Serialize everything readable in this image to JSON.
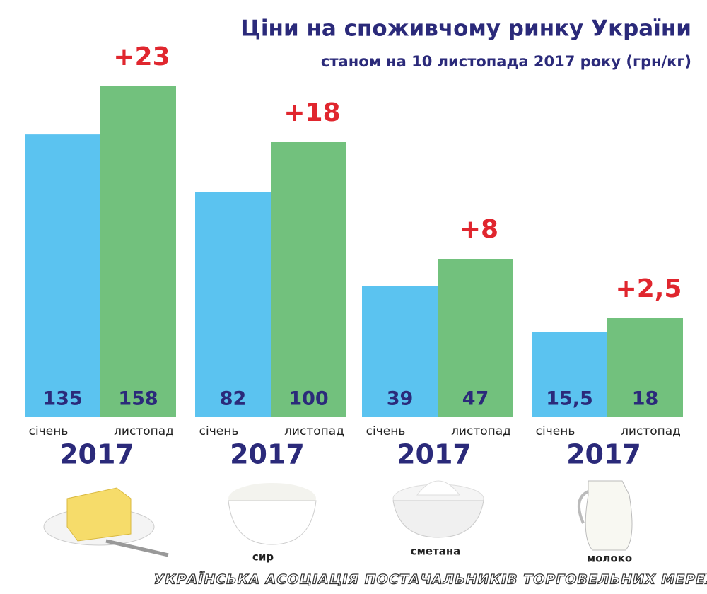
{
  "title": "Ціни на споживчому ринку України",
  "subtitle": "станом на 10 листопада 2017 року (грн/кг)",
  "groups": [
    {
      "change": "+23",
      "year": "2017",
      "bars": [
        {
          "label": "січень",
          "value": 135
        },
        {
          "label": "листопад",
          "value": 158
        }
      ]
    },
    {
      "change": "+18",
      "year": "2017",
      "product": "сир",
      "bars": [
        {
          "label": "січень",
          "value": 82
        },
        {
          "label": "листопад",
          "value": 100
        }
      ]
    },
    {
      "change": "+8",
      "year": "2017",
      "product": "сметана",
      "bars": [
        {
          "label": "січень",
          "value": 39
        },
        {
          "label": "листопад",
          "value": 47
        }
      ]
    },
    {
      "change": "+2,5",
      "year": "2017",
      "product": "молоко",
      "bars": [
        {
          "label": "січень",
          "value": 15.5,
          "value_label": "15,5"
        },
        {
          "label": "листопад",
          "value": 18
        }
      ]
    }
  ],
  "colors": [
    "#5bc3f0",
    "#72c17d"
  ],
  "footer": "УКРАЇНСЬКА АСОЦІАЦІЯ ПОСТАЧАЛЬНИКІВ ТОРГОВЕЛЬНИХ МЕРЕЖ"
}
